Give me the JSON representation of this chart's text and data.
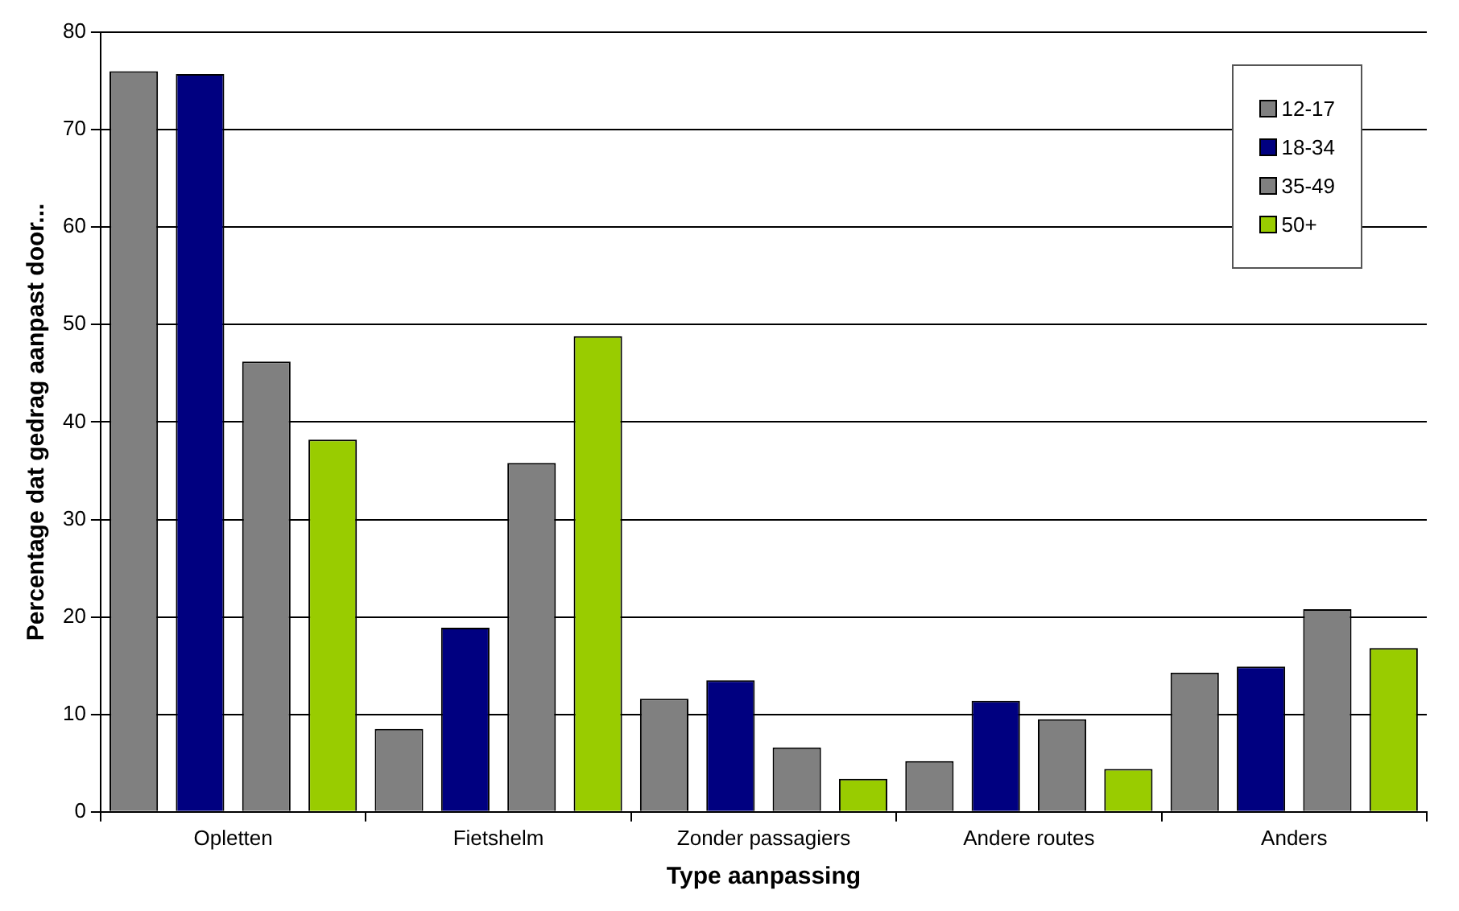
{
  "chart_data": {
    "type": "bar",
    "xlabel": "Type aanpassing",
    "ylabel": "Percentage dat gedrag aanpast door...",
    "categories": [
      "Opletten",
      "Fietshelm",
      "Zonder passagiers",
      "Andere routes",
      "Anders"
    ],
    "series": [
      {
        "name": "12-17",
        "color": "#808080",
        "values": [
          76,
          8.5,
          11.6,
          5.2,
          14.3
        ]
      },
      {
        "name": "18-34",
        "color": "#000080",
        "values": [
          75.7,
          18.9,
          13.5,
          11.4,
          14.9
        ]
      },
      {
        "name": "35-49",
        "color": "#808080",
        "values": [
          46.2,
          35.8,
          6.6,
          9.5,
          20.8
        ]
      },
      {
        "name": "50+",
        "color": "#99cc00",
        "values": [
          38.2,
          48.8,
          3.4,
          4.4,
          16.8
        ]
      }
    ],
    "ylim": [
      0,
      80
    ],
    "yticks": [
      0,
      10,
      20,
      30,
      40,
      50,
      60,
      70,
      80
    ],
    "grid": "y",
    "legend": "top right"
  }
}
